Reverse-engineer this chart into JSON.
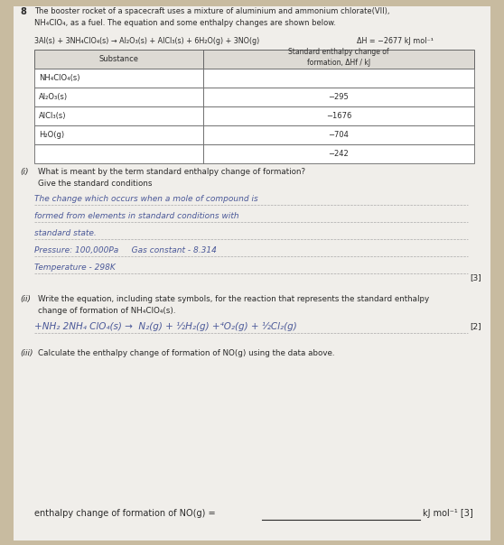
{
  "page_number": "8",
  "bg_color": "#c8bba0",
  "paper_color": "#f0eeea",
  "intro_text": "The booster rocket of a spacecraft uses a mixture of aluminium and ammonium chlorate(VII),\nNH₄ClO₄, as a fuel. The equation and some enthalpy changes are shown below.",
  "equation": "3Al(s) + 3NH₄ClO₄(s) → Al₂O₃(s) + AlCl₃(s) + 6H₂O(g) + 3NO(g)",
  "delta_h": "ΔH = −2677 kJ mol⁻¹",
  "table_substances": [
    "NH₄ClO₄(s)",
    "Al₂O₃(s)",
    "AlCl₃(s)",
    "H₂O(g)",
    ""
  ],
  "table_values": [
    "",
    "−295",
    "−1676",
    "−704",
    "−242"
  ],
  "table_header_left": "Substance",
  "table_header_right": "Standard enthalpy change of\nformation, ΔHf / kJ",
  "q1_label": "(i)",
  "q1_text": "What is meant by the term standard enthalpy change of formation?\nGive the standard conditions",
  "q1_answer_lines": [
    "The change which occurs when a mole of compound is",
    "formed from elements in standard conditions with",
    "standard state.",
    "Pressure: 100,000Pa     Gas constant - 8.314",
    "Temperature - 298K"
  ],
  "q1_mark": "[3]",
  "q2_label": "(ii)",
  "q2_text": "Write the equation, including state symbols, for the reaction that represents the standard enthalpy\nchange of formation of NH₄ClO₄(s).",
  "q2_answer": "+NH₂ 2NH₄ ClO₄(s) →  N₂(g) + ½H₂(g) +⁴O₂(g) + ½Cl₂(g)",
  "q2_mark": "[2]",
  "q3_label": "(iii)",
  "q3_text": "Calculate the enthalpy change of formation of NO(g) using the data above.",
  "q3_answer_label": "enthalpy change of formation of NO(g) =",
  "q3_unit": "kJ mol⁻¹ [3]"
}
